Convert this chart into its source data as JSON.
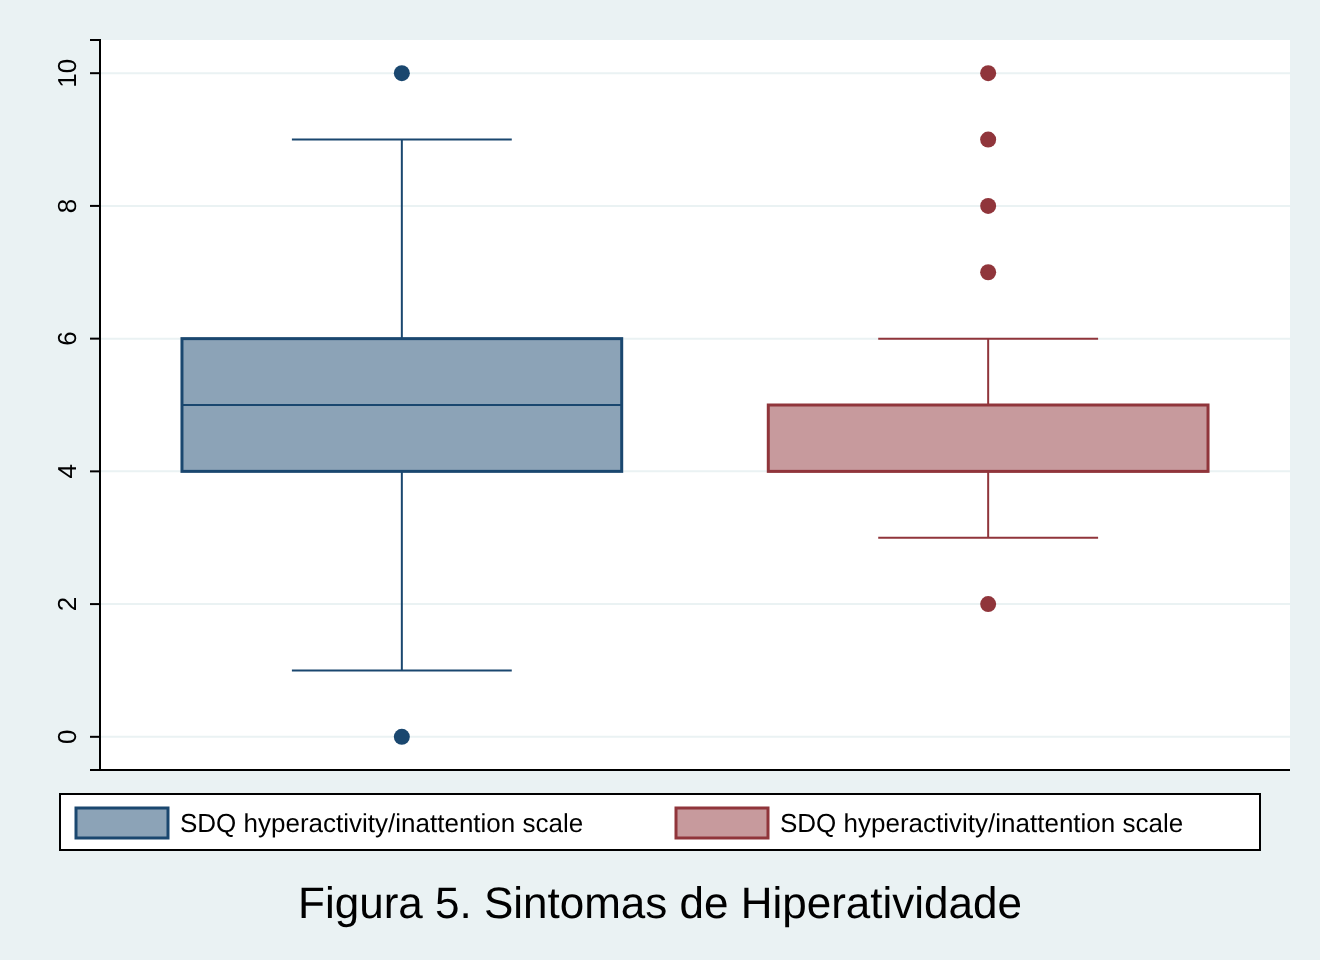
{
  "chart_data": {
    "type": "box",
    "title": "Figura 5. Sintomas de Hiperatividade",
    "categories": [
      null
    ],
    "ylim": [
      -0.5,
      10.5
    ],
    "yticks": [
      0,
      2,
      4,
      6,
      8,
      10
    ],
    "grid": "y",
    "legend": "bottom",
    "series": [
      {
        "name": "SDQ hyperactivity/inattention scale",
        "color": "#1a476f",
        "boxes": [
          {
            "low": 1,
            "q1": 4,
            "median": 5,
            "q3": 6,
            "high": 9,
            "outliers": [
              0,
              10
            ]
          }
        ]
      },
      {
        "name": "SDQ hyperactivity/inattention scale",
        "color": "#90353b",
        "boxes": [
          {
            "low": 3,
            "q1": 4,
            "median": 4,
            "q3": 5,
            "high": 6,
            "outliers": [
              2,
              7,
              8,
              9,
              10
            ]
          }
        ]
      }
    ]
  }
}
